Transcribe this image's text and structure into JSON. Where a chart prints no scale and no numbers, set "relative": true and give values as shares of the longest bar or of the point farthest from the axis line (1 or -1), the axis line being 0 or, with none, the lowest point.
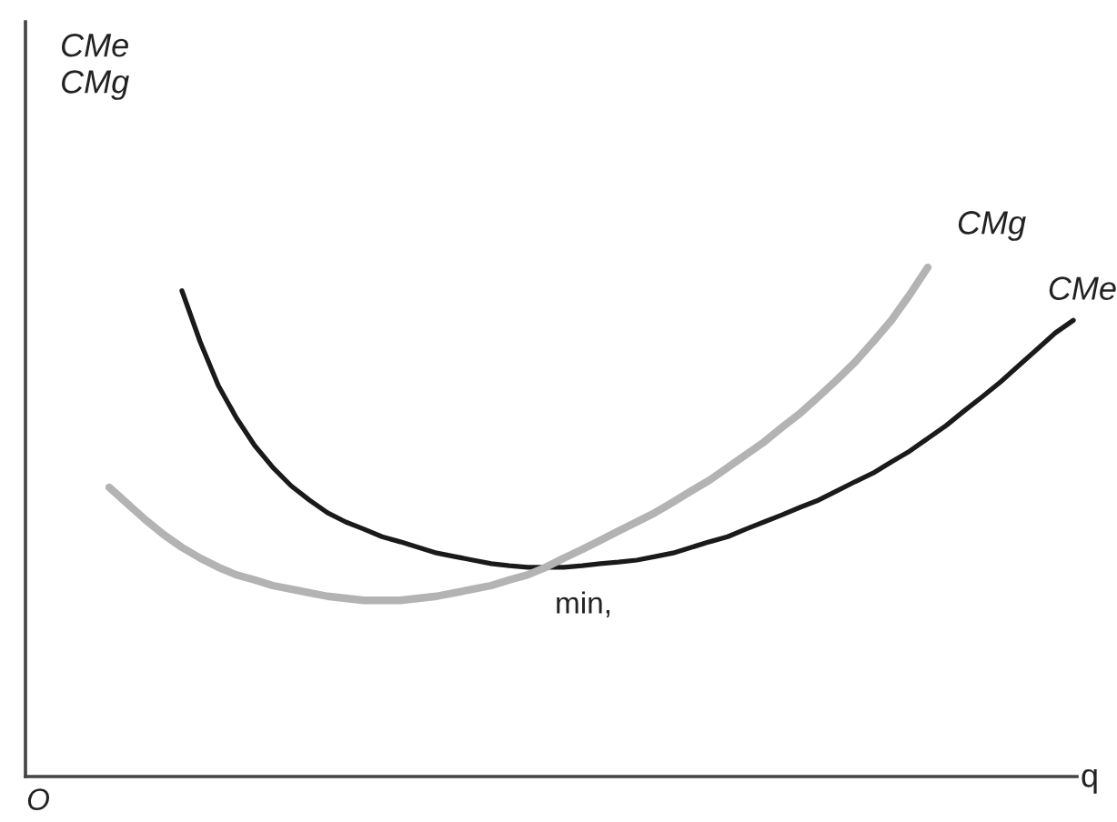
{
  "chart_data": {
    "type": "line",
    "relative": true,
    "xlabel": "q",
    "annotations": [
      "CMe\nCMg",
      "min,",
      "O"
    ],
    "categories": [
      null,
      null,
      null,
      null,
      null,
      null,
      null,
      null,
      null,
      null,
      null,
      null,
      null,
      null,
      null,
      null,
      null,
      null,
      null,
      null,
      null,
      null,
      null,
      null,
      null,
      null,
      null,
      null,
      null,
      null,
      null,
      null,
      null,
      null,
      null,
      null,
      null,
      null,
      null,
      null,
      null,
      null,
      null,
      null,
      null,
      null,
      null,
      null,
      null,
      null,
      null,
      null,
      null,
      null
    ],
    "series": [
      {
        "name": "CMe",
        "color": "#1a1a1a",
        "values": [
          null,
          null,
          null,
          null,
          0.954,
          0.854,
          0.768,
          0.704,
          0.65,
          0.607,
          0.571,
          0.543,
          0.518,
          0.5,
          0.486,
          0.471,
          0.461,
          0.45,
          0.439,
          0.432,
          0.425,
          0.418,
          0.414,
          0.411,
          0.411,
          0.411,
          0.414,
          0.418,
          0.421,
          0.425,
          0.432,
          0.439,
          0.45,
          0.461,
          0.471,
          0.486,
          0.5,
          0.514,
          0.529,
          0.543,
          0.561,
          0.579,
          0.596,
          0.618,
          0.639,
          0.664,
          0.689,
          0.718,
          0.746,
          0.775,
          0.807,
          0.839,
          0.871,
          0.896
        ]
      },
      {
        "name": "CMg",
        "color": "#b3b3b3",
        "values": [
          0.568,
          0.536,
          0.504,
          0.475,
          0.45,
          0.429,
          0.411,
          0.396,
          0.386,
          0.375,
          0.368,
          0.361,
          0.354,
          0.35,
          0.346,
          0.346,
          0.346,
          0.35,
          0.354,
          0.361,
          0.368,
          0.375,
          0.386,
          0.396,
          0.411,
          0.429,
          0.446,
          0.464,
          0.482,
          0.5,
          0.518,
          0.539,
          0.561,
          0.582,
          0.607,
          0.632,
          0.657,
          0.686,
          0.714,
          0.746,
          0.779,
          0.814,
          0.854,
          0.896,
          0.946,
          1,
          null,
          null,
          null,
          null,
          null,
          null,
          null,
          null
        ]
      }
    ]
  }
}
